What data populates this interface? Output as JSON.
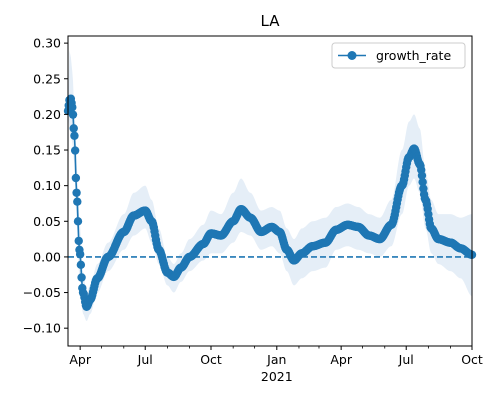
{
  "chart_data": {
    "type": "line",
    "title": "LA",
    "xlabel": "",
    "ylabel": "",
    "x_start": "2020-03-15",
    "x_end": "2021-10-01",
    "ylim": [
      -0.125,
      0.31
    ],
    "yticks": [
      -0.1,
      -0.05,
      0.0,
      0.05,
      0.1,
      0.15,
      0.2,
      0.25,
      0.3
    ],
    "ytick_labels": [
      "−0.10",
      "−0.05",
      "0.00",
      "0.05",
      "0.10",
      "0.15",
      "0.20",
      "0.25",
      "0.30"
    ],
    "xticks_major": [
      {
        "date": "2020-04-01",
        "label": "Apr"
      },
      {
        "date": "2020-07-01",
        "label": "Jul"
      },
      {
        "date": "2020-10-01",
        "label": "Oct"
      },
      {
        "date": "2021-01-01",
        "label": "Jan"
      },
      {
        "date": "2021-04-01",
        "label": "Apr"
      },
      {
        "date": "2021-07-01",
        "label": "Jul"
      },
      {
        "date": "2021-10-01",
        "label": "Oct"
      }
    ],
    "year_label": {
      "date": "2021-01-01",
      "label": "2021"
    },
    "xticks_minor": [
      "2020-05-01",
      "2020-06-01",
      "2020-08-01",
      "2020-09-01",
      "2020-11-01",
      "2020-12-01",
      "2021-02-01",
      "2021-03-01",
      "2021-05-01",
      "2021-06-01",
      "2021-08-01",
      "2021-09-01"
    ],
    "reference_line": {
      "y": 0.0,
      "style": "dashed"
    },
    "grid": false,
    "legend": {
      "placement": "top-right",
      "entries": [
        "growth_rate"
      ]
    },
    "colors": {
      "series": "#1f77b4",
      "band": "#dce8f4"
    },
    "series": [
      {
        "name": "growth_rate",
        "key_points": [
          {
            "x": "2020-03-15",
            "y": 0.205,
            "lo": 0.2,
            "hi": 0.21
          },
          {
            "x": "2020-03-17",
            "y": 0.22,
            "lo": 0.18,
            "hi": 0.29
          },
          {
            "x": "2020-03-19",
            "y": 0.222,
            "lo": 0.17,
            "hi": 0.28
          },
          {
            "x": "2020-03-21",
            "y": 0.21,
            "lo": 0.16,
            "hi": 0.26
          },
          {
            "x": "2020-03-24",
            "y": 0.17,
            "lo": 0.13,
            "hi": 0.21
          },
          {
            "x": "2020-03-27",
            "y": 0.09,
            "lo": 0.05,
            "hi": 0.13
          },
          {
            "x": "2020-03-31",
            "y": 0.01,
            "lo": -0.03,
            "hi": 0.05
          },
          {
            "x": "2020-04-05",
            "y": -0.05,
            "lo": -0.08,
            "hi": -0.02
          },
          {
            "x": "2020-04-10",
            "y": -0.07,
            "lo": -0.09,
            "hi": -0.05
          },
          {
            "x": "2020-04-15",
            "y": -0.06,
            "lo": -0.08,
            "hi": -0.04
          },
          {
            "x": "2020-04-25",
            "y": -0.03,
            "lo": -0.05,
            "hi": -0.01
          },
          {
            "x": "2020-05-10",
            "y": 0.0,
            "lo": -0.02,
            "hi": 0.02
          },
          {
            "x": "2020-06-01",
            "y": 0.035,
            "lo": 0.01,
            "hi": 0.06
          },
          {
            "x": "2020-06-15",
            "y": 0.058,
            "lo": 0.03,
            "hi": 0.09
          },
          {
            "x": "2020-07-01",
            "y": 0.065,
            "lo": 0.04,
            "hi": 0.1
          },
          {
            "x": "2020-07-10",
            "y": 0.05,
            "lo": 0.02,
            "hi": 0.08
          },
          {
            "x": "2020-07-20",
            "y": 0.01,
            "lo": -0.01,
            "hi": 0.04
          },
          {
            "x": "2020-08-01",
            "y": -0.022,
            "lo": -0.04,
            "hi": 0.0
          },
          {
            "x": "2020-08-10",
            "y": -0.028,
            "lo": -0.05,
            "hi": -0.01
          },
          {
            "x": "2020-08-20",
            "y": -0.015,
            "lo": -0.035,
            "hi": 0.005
          },
          {
            "x": "2020-09-01",
            "y": 0.0,
            "lo": -0.02,
            "hi": 0.025
          },
          {
            "x": "2020-09-20",
            "y": 0.018,
            "lo": -0.005,
            "hi": 0.045
          },
          {
            "x": "2020-10-01",
            "y": 0.033,
            "lo": 0.005,
            "hi": 0.065
          },
          {
            "x": "2020-10-15",
            "y": 0.03,
            "lo": 0.005,
            "hi": 0.06
          },
          {
            "x": "2020-11-01",
            "y": 0.05,
            "lo": 0.02,
            "hi": 0.09
          },
          {
            "x": "2020-11-12",
            "y": 0.067,
            "lo": 0.035,
            "hi": 0.11
          },
          {
            "x": "2020-11-25",
            "y": 0.055,
            "lo": 0.03,
            "hi": 0.09
          },
          {
            "x": "2020-12-10",
            "y": 0.035,
            "lo": 0.01,
            "hi": 0.065
          },
          {
            "x": "2020-12-25",
            "y": 0.042,
            "lo": 0.015,
            "hi": 0.07
          },
          {
            "x": "2021-01-05",
            "y": 0.035,
            "lo": 0.005,
            "hi": 0.065
          },
          {
            "x": "2021-01-15",
            "y": 0.01,
            "lo": -0.02,
            "hi": 0.04
          },
          {
            "x": "2021-01-25",
            "y": -0.005,
            "lo": -0.04,
            "hi": 0.025
          },
          {
            "x": "2021-02-05",
            "y": 0.005,
            "lo": -0.03,
            "hi": 0.04
          },
          {
            "x": "2021-02-20",
            "y": 0.015,
            "lo": -0.02,
            "hi": 0.05
          },
          {
            "x": "2021-03-10",
            "y": 0.02,
            "lo": -0.015,
            "hi": 0.055
          },
          {
            "x": "2021-03-25",
            "y": 0.038,
            "lo": 0.01,
            "hi": 0.07
          },
          {
            "x": "2021-04-10",
            "y": 0.045,
            "lo": 0.015,
            "hi": 0.075
          },
          {
            "x": "2021-04-25",
            "y": 0.042,
            "lo": 0.01,
            "hi": 0.07
          },
          {
            "x": "2021-05-10",
            "y": 0.03,
            "lo": 0.005,
            "hi": 0.06
          },
          {
            "x": "2021-05-25",
            "y": 0.025,
            "lo": 0.0,
            "hi": 0.055
          },
          {
            "x": "2021-06-10",
            "y": 0.045,
            "lo": 0.015,
            "hi": 0.08
          },
          {
            "x": "2021-06-25",
            "y": 0.1,
            "lo": 0.06,
            "hi": 0.15
          },
          {
            "x": "2021-07-05",
            "y": 0.14,
            "lo": 0.1,
            "hi": 0.19
          },
          {
            "x": "2021-07-12",
            "y": 0.152,
            "lo": 0.11,
            "hi": 0.2
          },
          {
            "x": "2021-07-20",
            "y": 0.13,
            "lo": 0.09,
            "hi": 0.18
          },
          {
            "x": "2021-07-28",
            "y": 0.08,
            "lo": 0.04,
            "hi": 0.12
          },
          {
            "x": "2021-08-05",
            "y": 0.04,
            "lo": 0.005,
            "hi": 0.08
          },
          {
            "x": "2021-08-15",
            "y": 0.025,
            "lo": -0.01,
            "hi": 0.06
          },
          {
            "x": "2021-09-01",
            "y": 0.02,
            "lo": -0.02,
            "hi": 0.06
          },
          {
            "x": "2021-09-15",
            "y": 0.012,
            "lo": -0.03,
            "hi": 0.055
          },
          {
            "x": "2021-10-01",
            "y": 0.003,
            "lo": -0.055,
            "hi": 0.06
          }
        ]
      }
    ]
  }
}
